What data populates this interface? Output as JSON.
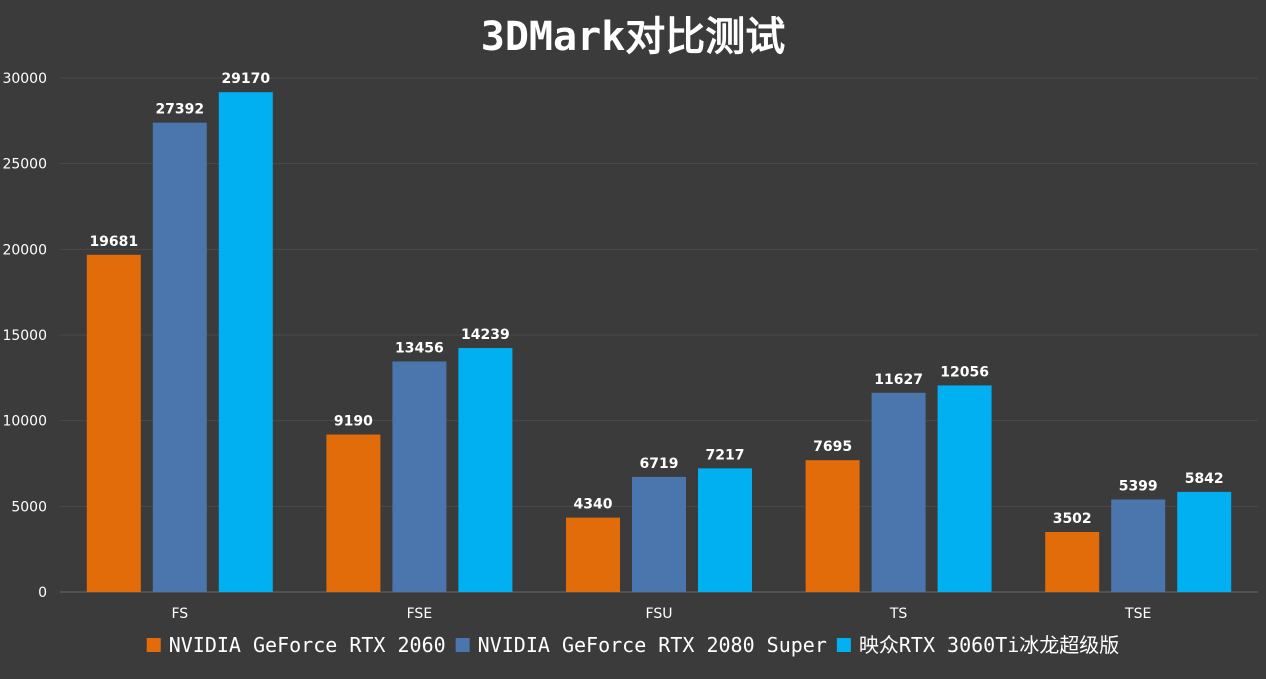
{
  "chart_data": {
    "type": "bar",
    "title": "3DMark对比测试",
    "categories": [
      "FS",
      "FSE",
      "FSU",
      "TS",
      "TSE"
    ],
    "series": [
      {
        "name": "NVIDIA GeForce RTX 2060",
        "color": "#e36c0a",
        "values": [
          19681,
          9190,
          4340,
          7695,
          3502
        ]
      },
      {
        "name": "NVIDIA GeForce RTX 2080 Super",
        "color": "#4a76ad",
        "values": [
          27392,
          13456,
          6719,
          11627,
          5399
        ]
      },
      {
        "name": "映众RTX 3060Ti冰龙超级版",
        "color": "#00b0f0",
        "values": [
          29170,
          14239,
          7217,
          12056,
          5842
        ]
      }
    ],
    "ylim": [
      0,
      30000
    ],
    "yticks": [
      0,
      5000,
      10000,
      15000,
      20000,
      25000,
      30000
    ],
    "grid": true,
    "legend_position": "bottom",
    "xlabel": "",
    "ylabel": ""
  },
  "colors": {
    "background": "#3b3b3b",
    "gridline": "#4a4a4a",
    "text": "#ffffff"
  }
}
